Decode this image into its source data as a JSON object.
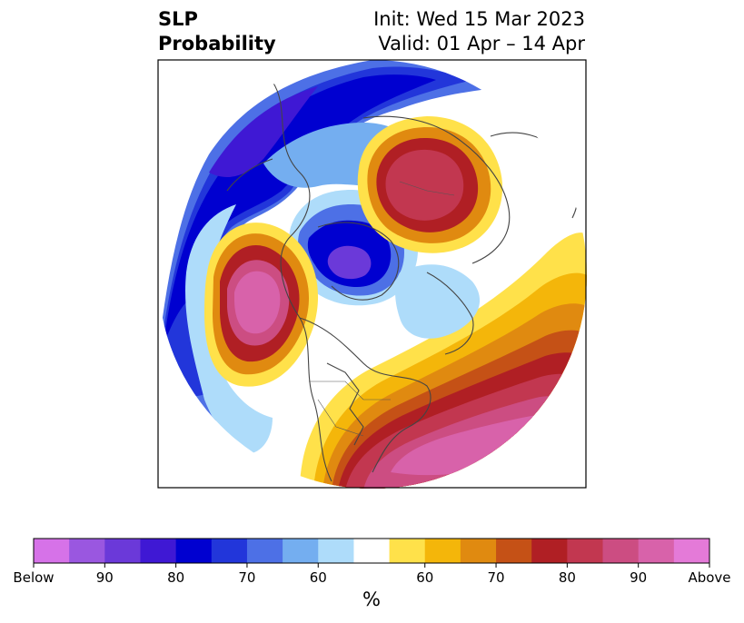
{
  "title": {
    "variable": "SLP",
    "field": "Probability",
    "init": "Init: Wed 15 Mar 2023",
    "valid": "Valid: 01 Apr – 14 Apr"
  },
  "map": {
    "projection": "north-polar-stereographic",
    "regions": [
      {
        "name": "below-normal-western-canada-alaska",
        "category": "below",
        "level": "80-90"
      },
      {
        "name": "below-normal-north-pacific-rim",
        "category": "below",
        "level": "70-80"
      },
      {
        "name": "above-normal-eastern-siberia",
        "category": "above",
        "level": "80-90"
      },
      {
        "name": "above-normal-gulf-of-alaska",
        "category": "above",
        "level": "90-above"
      },
      {
        "name": "above-normal-north-atlantic-eastern-us",
        "category": "above",
        "level": "90-above"
      },
      {
        "name": "below-normal-greenland-hudson-bay",
        "category": "below",
        "level": "90-below"
      }
    ]
  },
  "colorbar": {
    "colors": [
      "#d672e8",
      "#9a57e0",
      "#6b39d9",
      "#3f18d4",
      "#0000d0",
      "#2236da",
      "#4d70e6",
      "#74aef0",
      "#aedcfa",
      "#ffffff",
      "#ffe14a",
      "#f4b60a",
      "#e08a10",
      "#c55116",
      "#b01f24",
      "#c23750",
      "#cc4d82",
      "#d862aa",
      "#e47ad8"
    ],
    "tick_labels": [
      "Below",
      "90",
      "80",
      "70",
      "60",
      "60",
      "70",
      "80",
      "90",
      "Above"
    ],
    "unit": "%"
  }
}
